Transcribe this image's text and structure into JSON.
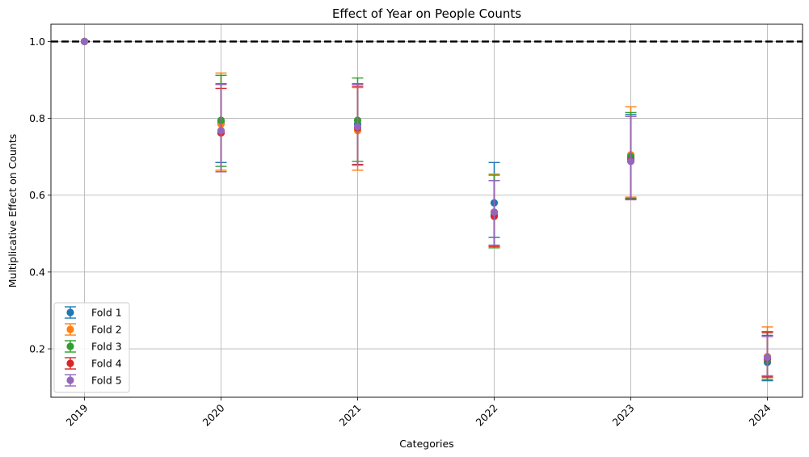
{
  "chart_data": {
    "type": "scatter",
    "title": "Effect of Year on People Counts",
    "xlabel": "Categories",
    "ylabel": "Multiplicative Effect on Counts",
    "categories": [
      "2019",
      "2020",
      "2021",
      "2022",
      "2023",
      "2024"
    ],
    "ylim": [
      0.074,
      1.045
    ],
    "yticks": [
      "0.2",
      "0.4",
      "0.6",
      "0.8",
      "1.0"
    ],
    "grid": true,
    "legend_position": "lower-left",
    "reference_line": {
      "y": 1.0,
      "style": "dashed",
      "color": "#000000"
    },
    "series": [
      {
        "name": "Fold 1",
        "color": "#1f77b4",
        "values": [
          1.0,
          0.79,
          0.785,
          0.58,
          0.695,
          0.165
        ],
        "lower": [
          1.0,
          0.685,
          0.68,
          0.49,
          0.59,
          0.117
        ],
        "upper": [
          1.0,
          0.89,
          0.89,
          0.685,
          0.81,
          0.235
        ]
      },
      {
        "name": "Fold 2",
        "color": "#ff7f0e",
        "values": [
          1.0,
          0.785,
          0.768,
          0.55,
          0.705,
          0.18
        ],
        "lower": [
          1.0,
          0.665,
          0.665,
          0.466,
          0.595,
          0.125
        ],
        "upper": [
          1.0,
          0.918,
          0.88,
          0.655,
          0.83,
          0.257
        ]
      },
      {
        "name": "Fold 3",
        "color": "#2ca02c",
        "values": [
          1.0,
          0.795,
          0.795,
          0.548,
          0.7,
          0.172
        ],
        "lower": [
          1.0,
          0.675,
          0.688,
          0.463,
          0.592,
          0.12
        ],
        "upper": [
          1.0,
          0.912,
          0.905,
          0.652,
          0.815,
          0.245
        ]
      },
      {
        "name": "Fold 4",
        "color": "#d62728",
        "values": [
          1.0,
          0.762,
          0.775,
          0.545,
          0.69,
          0.175
        ],
        "lower": [
          1.0,
          0.661,
          0.68,
          0.467,
          0.59,
          0.127
        ],
        "upper": [
          1.0,
          0.878,
          0.883,
          0.638,
          0.805,
          0.242
        ]
      },
      {
        "name": "Fold 5",
        "color": "#9467bd",
        "values": [
          1.0,
          0.768,
          0.778,
          0.556,
          0.688,
          0.178
        ],
        "lower": [
          1.0,
          0.661,
          0.678,
          0.47,
          0.588,
          0.13
        ],
        "upper": [
          1.0,
          0.888,
          0.888,
          0.638,
          0.805,
          0.232
        ]
      }
    ]
  }
}
